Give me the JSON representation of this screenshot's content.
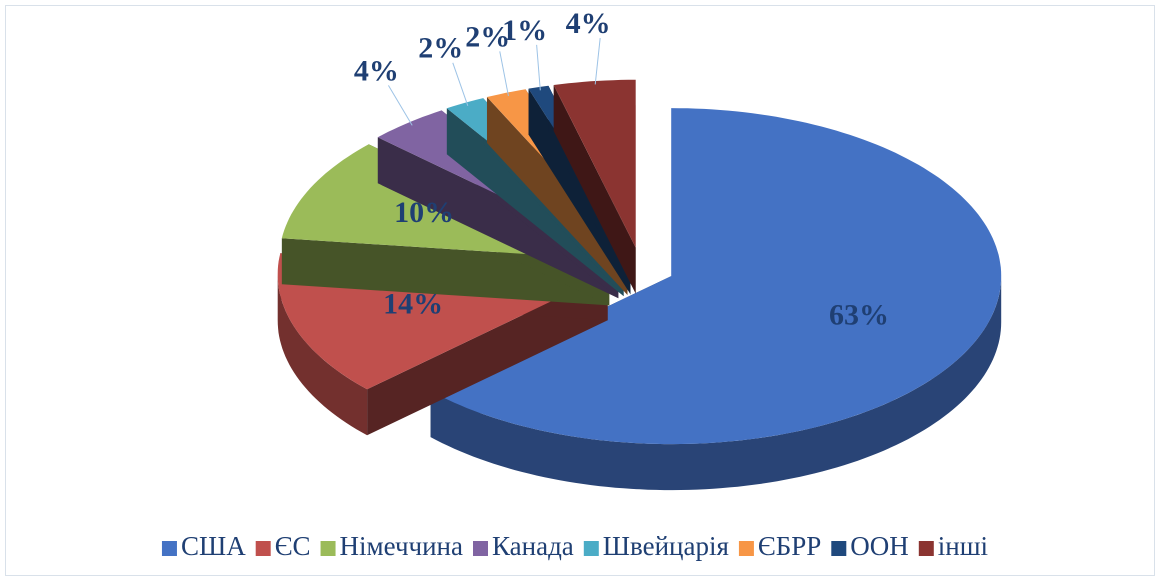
{
  "chart_data": {
    "type": "pie",
    "categories": [
      "США",
      "ЄС",
      "Німеччина",
      "Канада",
      "Швейцарія",
      "ЄБРР",
      "ООН",
      "інші"
    ],
    "values": [
      63,
      14,
      10,
      4,
      2,
      2,
      1,
      4
    ],
    "value_labels": [
      "63%",
      "14%",
      "10%",
      "4%",
      "2%",
      "2%",
      "1%",
      "4%"
    ],
    "colors": [
      "#4472c4",
      "#c0504d",
      "#9bbb59",
      "#8064a2",
      "#4bacc6",
      "#f79646",
      "#1f497d",
      "#8b3431"
    ],
    "legend": "bottom"
  }
}
